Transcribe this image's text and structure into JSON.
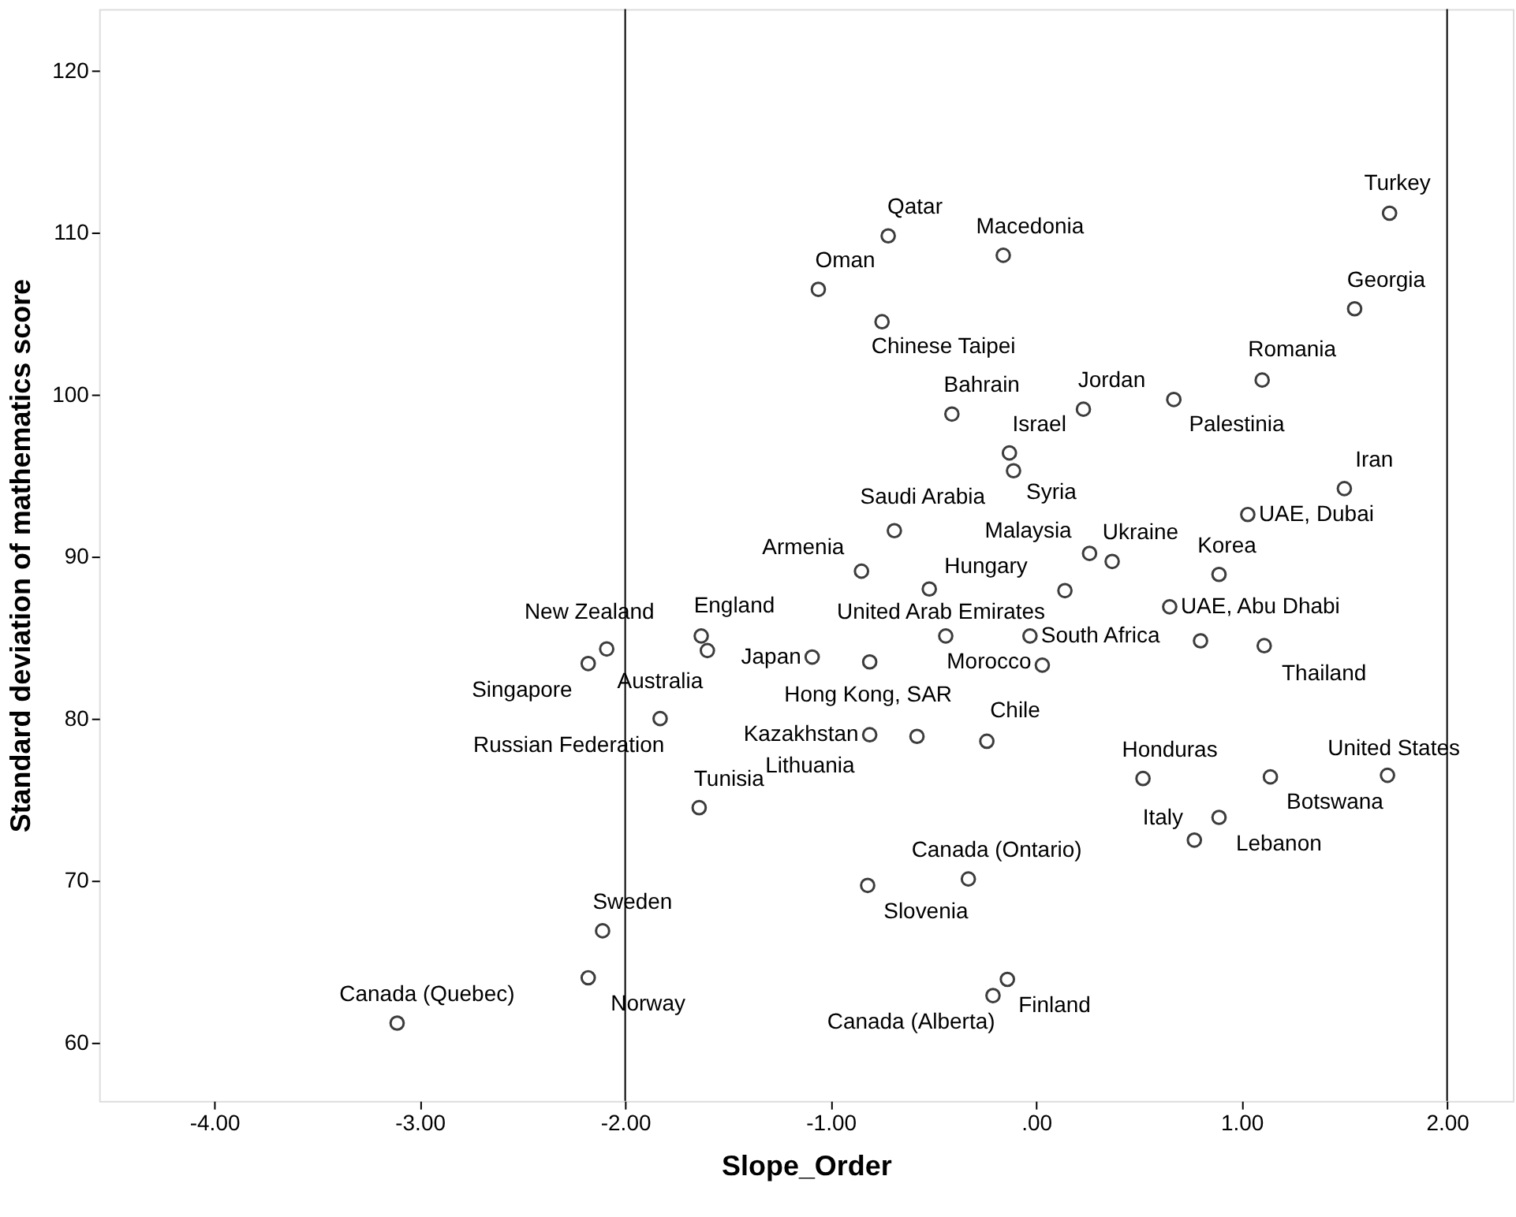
{
  "chart_data": {
    "type": "scatter",
    "xlabel": "Slope_Order",
    "ylabel": "Standard deviation of mathematics score",
    "xlim": [
      -4.56,
      2.32
    ],
    "ylim": [
      56.4,
      123.8
    ],
    "xticks": [
      {
        "value": -4,
        "label": "-4.00"
      },
      {
        "value": -3,
        "label": "-3.00"
      },
      {
        "value": -2,
        "label": "-2.00"
      },
      {
        "value": -1,
        "label": "-1.00"
      },
      {
        "value": 0,
        "label": ".00"
      },
      {
        "value": 1,
        "label": "1.00"
      },
      {
        "value": 2,
        "label": "2.00"
      }
    ],
    "yticks": [
      60,
      70,
      80,
      90,
      100,
      110,
      120
    ],
    "grid": false,
    "marker": "circle",
    "series": [
      {
        "color": "#3c3c3c",
        "x": [
          1.72,
          1.55,
          1.1,
          0.67,
          0.23,
          1.5,
          1.03,
          -0.72,
          -0.16,
          -1.06,
          -0.75,
          -0.41,
          -0.13,
          -0.11,
          -0.69,
          -0.85,
          -0.52,
          0.26,
          0.37,
          0.14,
          0.89,
          0.65,
          0.8,
          1.11,
          -0.44,
          -0.03,
          0.03,
          -1.09,
          -0.81,
          -0.81,
          -0.58,
          -0.24,
          -1.64,
          -0.82,
          -0.33,
          -0.14,
          -0.21,
          -1.83,
          -2.09,
          -2.18,
          -1.63,
          -1.6,
          0.52,
          1.14,
          1.71,
          0.89,
          0.77,
          -2.11,
          -2.18,
          -3.11
        ],
        "values": [
          111.2,
          105.3,
          100.9,
          99.7,
          99.1,
          94.2,
          92.6,
          109.8,
          108.6,
          106.5,
          104.5,
          98.8,
          96.4,
          95.3,
          91.6,
          89.1,
          88.0,
          90.2,
          89.7,
          87.9,
          88.9,
          86.9,
          84.8,
          84.5,
          85.1,
          85.1,
          83.3,
          83.8,
          83.5,
          79.0,
          78.9,
          78.6,
          74.5,
          69.7,
          70.1,
          63.9,
          62.9,
          80.0,
          84.3,
          83.4,
          85.1,
          84.2,
          76.3,
          76.4,
          76.5,
          73.9,
          72.5,
          66.9,
          64.0,
          61.2
        ]
      }
    ],
    "ref_lines": [
      {
        "axis": "x",
        "value": -2,
        "color": "#000000"
      },
      {
        "axis": "x",
        "value": 2,
        "color": "#000000"
      }
    ],
    "annotations": [
      {
        "text": "Turkey",
        "x": 1.72,
        "y": 111.2
      },
      {
        "text": "Georgia",
        "x": 1.55,
        "y": 105.3
      },
      {
        "text": "Romania",
        "x": 1.1,
        "y": 100.9
      },
      {
        "text": "Palestinia",
        "x": 0.67,
        "y": 99.7
      },
      {
        "text": "Jordan",
        "x": 0.23,
        "y": 99.1
      },
      {
        "text": "Iran",
        "x": 1.5,
        "y": 94.2
      },
      {
        "text": "UAE, Dubai",
        "x": 1.03,
        "y": 92.6
      },
      {
        "text": "Qatar",
        "x": -0.72,
        "y": 109.8
      },
      {
        "text": "Macedonia",
        "x": -0.16,
        "y": 108.6
      },
      {
        "text": "Oman",
        "x": -1.06,
        "y": 106.5
      },
      {
        "text": "Chinese Taipei",
        "x": -0.75,
        "y": 104.5
      },
      {
        "text": "Bahrain",
        "x": -0.41,
        "y": 98.8
      },
      {
        "text": "Israel",
        "x": -0.13,
        "y": 96.4
      },
      {
        "text": "Syria",
        "x": -0.11,
        "y": 95.3
      },
      {
        "text": "Saudi Arabia",
        "x": -0.69,
        "y": 91.6
      },
      {
        "text": "Armenia",
        "x": -0.85,
        "y": 89.1
      },
      {
        "text": "Hungary",
        "x": -0.52,
        "y": 88.0
      },
      {
        "text": "Malaysia",
        "x": 0.26,
        "y": 90.2
      },
      {
        "text": "Ukraine",
        "x": 0.37,
        "y": 89.7
      },
      {
        "text": "Korea",
        "x": 0.89,
        "y": 88.9
      },
      {
        "text": "UAE, Abu Dhabi",
        "x": 0.65,
        "y": 86.9
      },
      {
        "text": "Thailand",
        "x": 1.11,
        "y": 84.5
      },
      {
        "text": "United Arab Emirates",
        "x": -0.44,
        "y": 85.1
      },
      {
        "text": "South Africa",
        "x": -0.03,
        "y": 85.1
      },
      {
        "text": "Morocco",
        "x": 0.03,
        "y": 83.3
      },
      {
        "text": "Japan",
        "x": -1.09,
        "y": 83.8
      },
      {
        "text": "Hong Kong, SAR",
        "x": -0.81,
        "y": 83.5
      },
      {
        "text": "Kazakhstan",
        "x": -0.81,
        "y": 79.0
      },
      {
        "text": "Lithuania",
        "x": -0.58,
        "y": 78.9
      },
      {
        "text": "Chile",
        "x": -0.24,
        "y": 78.6
      },
      {
        "text": "Tunisia",
        "x": -1.64,
        "y": 74.5
      },
      {
        "text": "Slovenia",
        "x": -0.82,
        "y": 69.7
      },
      {
        "text": "Canada (Ontario)",
        "x": -0.33,
        "y": 70.1
      },
      {
        "text": "Finland",
        "x": -0.14,
        "y": 63.9
      },
      {
        "text": "Canada (Alberta)",
        "x": -0.21,
        "y": 62.9
      },
      {
        "text": "Russian Federation",
        "x": -1.83,
        "y": 80.0
      },
      {
        "text": "New Zealand",
        "x": -2.09,
        "y": 84.3
      },
      {
        "text": "Singapore",
        "x": -2.18,
        "y": 83.4
      },
      {
        "text": "England",
        "x": -1.63,
        "y": 85.1
      },
      {
        "text": "Australia",
        "x": -1.6,
        "y": 84.2
      },
      {
        "text": "Honduras",
        "x": 0.52,
        "y": 76.3
      },
      {
        "text": "Botswana",
        "x": 1.14,
        "y": 76.4
      },
      {
        "text": "United States",
        "x": 1.71,
        "y": 76.5
      },
      {
        "text": "Lebanon",
        "x": 0.89,
        "y": 73.9
      },
      {
        "text": "Italy",
        "x": 0.77,
        "y": 72.5
      },
      {
        "text": "Sweden",
        "x": -2.11,
        "y": 66.9
      },
      {
        "text": "Norway",
        "x": -2.18,
        "y": 64.0
      },
      {
        "text": "Canada (Quebec)",
        "x": -3.11,
        "y": 61.2
      }
    ]
  }
}
